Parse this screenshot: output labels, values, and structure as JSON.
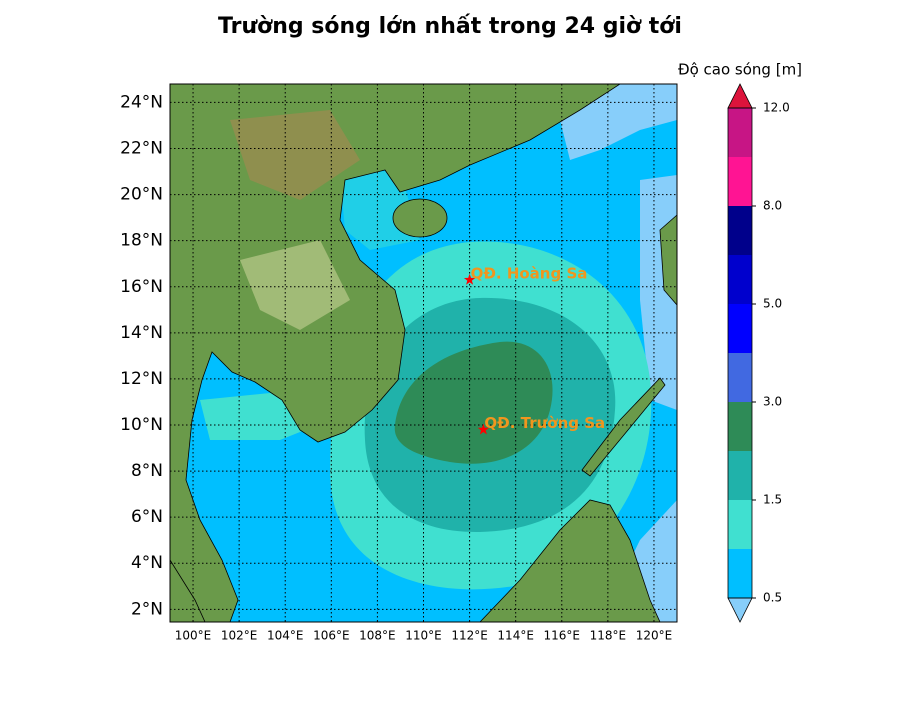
{
  "title": "Trường sóng lớn nhất trong 24 giờ tới",
  "map": {
    "xlim": [
      99,
      121
    ],
    "ylim": [
      1.45,
      24.8
    ],
    "grid": true,
    "xticks": [
      {
        "value": 100,
        "label": "100°E"
      },
      {
        "value": 102,
        "label": "102°E"
      },
      {
        "value": 104,
        "label": "104°E"
      },
      {
        "value": 106,
        "label": "106°E"
      },
      {
        "value": 108,
        "label": "108°E"
      },
      {
        "value": 110,
        "label": "110°E"
      },
      {
        "value": 112,
        "label": "112°E"
      },
      {
        "value": 114,
        "label": "114°E"
      },
      {
        "value": 116,
        "label": "116°E"
      },
      {
        "value": 118,
        "label": "118°E"
      },
      {
        "value": 120,
        "label": "120°E"
      }
    ],
    "yticks": [
      {
        "value": 2,
        "label": "2°N"
      },
      {
        "value": 4,
        "label": "4°N"
      },
      {
        "value": 6,
        "label": "6°N"
      },
      {
        "value": 8,
        "label": "8°N"
      },
      {
        "value": 10,
        "label": "10°N"
      },
      {
        "value": 12,
        "label": "12°N"
      },
      {
        "value": 14,
        "label": "14°N"
      },
      {
        "value": 16,
        "label": "16°N"
      },
      {
        "value": 18,
        "label": "18°N"
      },
      {
        "value": 20,
        "label": "20°N"
      },
      {
        "value": 22,
        "label": "22°N"
      },
      {
        "value": 24,
        "label": "24°N"
      }
    ]
  },
  "annotations": [
    {
      "label": "QĐ. Hoàng Sa",
      "lon": 112.0,
      "lat": 16.3,
      "marker_color": "#ff0000",
      "text_color": "#f0961e"
    },
    {
      "label": "QĐ. Trường Sa",
      "lon": 112.6,
      "lat": 9.8,
      "marker_color": "#ff0000",
      "text_color": "#f0961e"
    }
  ],
  "colorbar": {
    "label": "Độ cao sóng [m]",
    "levels": [
      0.5,
      1,
      1.5,
      2,
      3,
      4,
      5,
      6,
      8,
      10,
      12
    ],
    "colors": [
      "#00bfff",
      "#40e0d0",
      "#20b2aa",
      "#2e8b57",
      "#4169e1",
      "#0000ff",
      "#0000cd",
      "#00008b",
      "#ff1493",
      "#c71585"
    ],
    "under_color": "#87cefa",
    "over_color": "#dc143c",
    "ticks": [
      {
        "value": 0.5,
        "label": "0.5"
      },
      {
        "value": 1.5,
        "label": "1.5"
      },
      {
        "value": 3,
        "label": "3.0"
      },
      {
        "value": 5,
        "label": "5.0"
      },
      {
        "value": 8,
        "label": "8.0"
      },
      {
        "value": 12,
        "label": "12.0"
      }
    ]
  }
}
